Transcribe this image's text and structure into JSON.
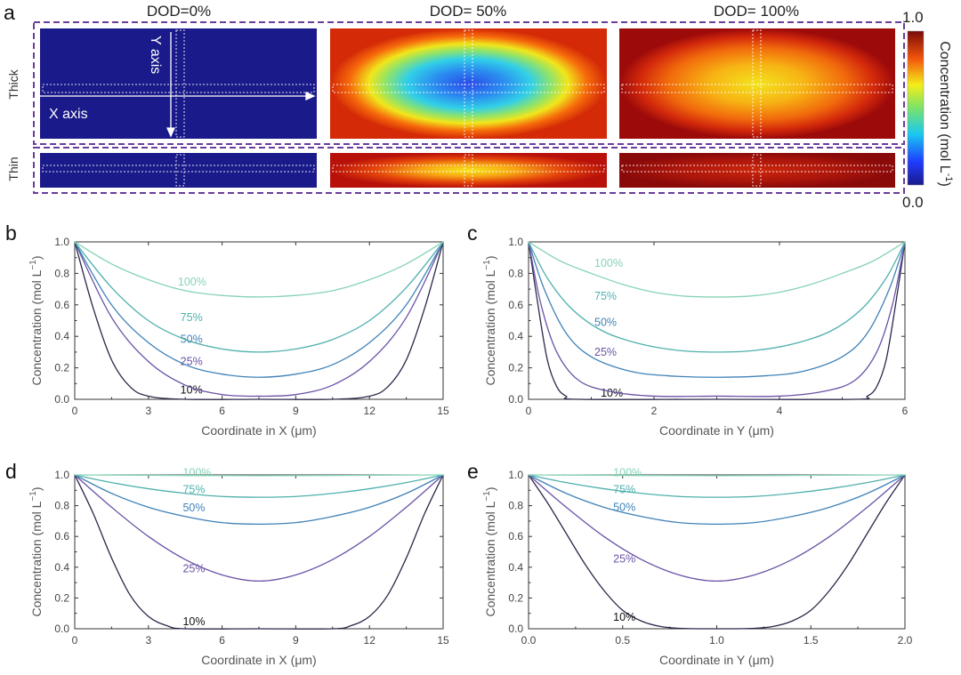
{
  "figure": {
    "panel_a_label": "a",
    "dod_headers": [
      "DOD=0%",
      "DOD= 50%",
      "DOD= 100%"
    ],
    "row_labels": [
      "Thick",
      "Thin"
    ],
    "axis_annotations": {
      "y": "Y axis",
      "x": "X axis"
    },
    "colorbar": {
      "max": "1.0",
      "min": "0.0",
      "title": "Concentration (mol L",
      "title_sup": "-1",
      "title_end": ")"
    }
  },
  "colors": {
    "10%": "#2b2748",
    "25%": "#6b52a6",
    "50%": "#3f82b8",
    "75%": "#4fb0ad",
    "100%": "#86d3b4",
    "dashed_frame": "#6a3c9b",
    "dark_blue": "#1a1a8a"
  },
  "chart_data": [
    {
      "panel": "b",
      "type": "line",
      "xlabel": "Coordinate in X (μm)",
      "ylabel": "Concentration (mol L",
      "ylabel_sup": "−1",
      "ylabel_end": ")",
      "xlim": [
        0,
        15
      ],
      "ylim": [
        0,
        1.0
      ],
      "xticks": [
        0,
        3,
        6,
        9,
        12,
        15
      ],
      "xtick_labels": [
        "0",
        "3",
        "6",
        "9",
        "12",
        "15"
      ],
      "yticks": [
        0,
        0.2,
        0.4,
        0.6,
        0.8,
        1.0
      ],
      "ytick_labels": [
        "0.0",
        "0.2",
        "0.4",
        "0.6",
        "0.8",
        "1.0"
      ],
      "series": [
        {
          "name": "10%",
          "x": [
            0,
            0.75,
            1.5,
            2.25,
            3,
            4.5,
            7.5,
            10.5,
            12,
            12.75,
            13.5,
            14.25,
            15
          ],
          "y": [
            1.0,
            0.58,
            0.25,
            0.08,
            0.02,
            0.0,
            0.0,
            0.0,
            0.02,
            0.08,
            0.25,
            0.58,
            1.0
          ],
          "label_pos": [
            4.3,
            0.06
          ]
        },
        {
          "name": "25%",
          "x": [
            0,
            1.5,
            3,
            4.5,
            6,
            7.5,
            9,
            10.5,
            12,
            13.5,
            15
          ],
          "y": [
            1.0,
            0.52,
            0.24,
            0.09,
            0.03,
            0.02,
            0.03,
            0.09,
            0.24,
            0.52,
            1.0
          ],
          "label_pos": [
            4.3,
            0.24
          ]
        },
        {
          "name": "50%",
          "x": [
            0,
            1.5,
            3,
            4.5,
            6,
            7.5,
            9,
            10.5,
            12,
            13.5,
            15
          ],
          "y": [
            1.0,
            0.6,
            0.36,
            0.22,
            0.16,
            0.14,
            0.16,
            0.22,
            0.36,
            0.6,
            1.0
          ],
          "label_pos": [
            4.3,
            0.38
          ]
        },
        {
          "name": "75%",
          "x": [
            0,
            1.5,
            3,
            4.5,
            6,
            7.5,
            9,
            10.5,
            12,
            13.5,
            15
          ],
          "y": [
            1.0,
            0.71,
            0.5,
            0.38,
            0.32,
            0.3,
            0.32,
            0.38,
            0.5,
            0.71,
            1.0
          ],
          "label_pos": [
            4.3,
            0.52
          ]
        },
        {
          "name": "100%",
          "x": [
            0,
            1.5,
            3,
            4.5,
            6,
            7.5,
            9,
            10.5,
            12,
            13.5,
            15
          ],
          "y": [
            1.0,
            0.86,
            0.76,
            0.69,
            0.66,
            0.65,
            0.66,
            0.69,
            0.76,
            0.86,
            1.0
          ],
          "label_pos": [
            4.2,
            0.745
          ]
        }
      ]
    },
    {
      "panel": "c",
      "type": "line",
      "xlabel": "Coordinate in Y (μm)",
      "ylabel": "Concentration (mol L",
      "ylabel_sup": "−1",
      "ylabel_end": ")",
      "xlim": [
        0,
        6
      ],
      "ylim": [
        0,
        1.0
      ],
      "xticks": [
        0,
        2,
        4,
        6
      ],
      "xtick_labels": [
        "0",
        "2",
        "4",
        "6"
      ],
      "yticks": [
        0,
        0.2,
        0.4,
        0.6,
        0.8,
        1.0
      ],
      "ytick_labels": [
        "0.0",
        "0.2",
        "0.4",
        "0.6",
        "0.8",
        "1.0"
      ],
      "series": [
        {
          "name": "10%",
          "x": [
            0,
            0.15,
            0.3,
            0.45,
            0.6,
            0.8,
            3,
            5.2,
            5.4,
            5.55,
            5.7,
            5.85,
            6
          ],
          "y": [
            1.0,
            0.6,
            0.25,
            0.08,
            0.02,
            0.0,
            0.0,
            0.0,
            0.02,
            0.08,
            0.25,
            0.6,
            1.0
          ],
          "label_pos": [
            1.15,
            0.04
          ]
        },
        {
          "name": "25%",
          "x": [
            0,
            0.2,
            0.45,
            0.8,
            1.3,
            2,
            3,
            4,
            4.7,
            5.2,
            5.55,
            5.8,
            6
          ],
          "y": [
            1.0,
            0.6,
            0.3,
            0.12,
            0.05,
            0.02,
            0.02,
            0.02,
            0.05,
            0.12,
            0.3,
            0.6,
            1.0
          ],
          "label_pos": [
            1.05,
            0.3
          ]
        },
        {
          "name": "50%",
          "x": [
            0,
            0.25,
            0.6,
            1.0,
            1.6,
            2.2,
            3,
            3.8,
            4.4,
            5.0,
            5.4,
            5.75,
            6
          ],
          "y": [
            1.0,
            0.7,
            0.42,
            0.27,
            0.18,
            0.15,
            0.14,
            0.15,
            0.18,
            0.27,
            0.42,
            0.7,
            1.0
          ],
          "label_pos": [
            1.05,
            0.49
          ]
        },
        {
          "name": "75%",
          "x": [
            0,
            0.3,
            0.7,
            1.2,
            1.8,
            2.4,
            3,
            3.6,
            4.2,
            4.8,
            5.3,
            5.7,
            6
          ],
          "y": [
            1.0,
            0.77,
            0.57,
            0.43,
            0.35,
            0.31,
            0.3,
            0.31,
            0.35,
            0.43,
            0.57,
            0.77,
            1.0
          ],
          "label_pos": [
            1.05,
            0.655
          ]
        },
        {
          "name": "100%",
          "x": [
            0,
            0.5,
            1,
            1.5,
            2,
            2.5,
            3,
            3.5,
            4,
            4.5,
            5,
            5.5,
            6
          ],
          "y": [
            1.0,
            0.88,
            0.8,
            0.73,
            0.68,
            0.655,
            0.65,
            0.655,
            0.68,
            0.73,
            0.8,
            0.88,
            1.0
          ],
          "label_pos": [
            1.05,
            0.865
          ]
        }
      ]
    },
    {
      "panel": "d",
      "type": "line",
      "xlabel": "Coordinate in X (μm)",
      "ylabel": "Concentration (mol L",
      "ylabel_sup": "−1",
      "ylabel_end": ")",
      "xlim": [
        0,
        15
      ],
      "ylim": [
        0,
        1.0
      ],
      "xticks": [
        0,
        3,
        6,
        9,
        12,
        15
      ],
      "xtick_labels": [
        "0",
        "3",
        "6",
        "9",
        "12",
        "15"
      ],
      "yticks": [
        0,
        0.2,
        0.4,
        0.6,
        0.8,
        1.0
      ],
      "ytick_labels": [
        "0.0",
        "0.2",
        "0.4",
        "0.6",
        "0.8",
        "1.0"
      ],
      "series": [
        {
          "name": "10%",
          "x": [
            0,
            0.75,
            1.5,
            2.25,
            3,
            3.75,
            4.5,
            7.5,
            10.5,
            11.25,
            12,
            12.75,
            13.5,
            14.25,
            15
          ],
          "y": [
            1.0,
            0.75,
            0.46,
            0.22,
            0.08,
            0.02,
            0.0,
            0.0,
            0.0,
            0.02,
            0.08,
            0.22,
            0.46,
            0.75,
            1.0
          ],
          "label_pos": [
            4.4,
            0.045
          ]
        },
        {
          "name": "25%",
          "x": [
            0,
            1.5,
            3,
            4.5,
            6,
            7.5,
            9,
            10.5,
            12,
            13.5,
            15
          ],
          "y": [
            1.0,
            0.79,
            0.6,
            0.45,
            0.35,
            0.31,
            0.35,
            0.45,
            0.6,
            0.79,
            1.0
          ],
          "label_pos": [
            4.4,
            0.39
          ]
        },
        {
          "name": "50%",
          "x": [
            0,
            1.5,
            3,
            4.5,
            6,
            7.5,
            9,
            10.5,
            12,
            13.5,
            15
          ],
          "y": [
            1.0,
            0.88,
            0.79,
            0.73,
            0.69,
            0.68,
            0.69,
            0.73,
            0.79,
            0.88,
            1.0
          ],
          "label_pos": [
            4.4,
            0.785
          ]
        },
        {
          "name": "75%",
          "x": [
            0,
            1.5,
            3,
            4.5,
            6,
            7.5,
            9,
            10.5,
            12,
            13.5,
            15
          ],
          "y": [
            1.0,
            0.95,
            0.91,
            0.88,
            0.86,
            0.855,
            0.86,
            0.88,
            0.91,
            0.95,
            1.0
          ],
          "label_pos": [
            4.4,
            0.905
          ]
        },
        {
          "name": "100%",
          "x": [
            0,
            7.5,
            15
          ],
          "y": [
            1.0,
            0.995,
            1.0
          ],
          "label_pos": [
            4.4,
            1.015
          ]
        }
      ]
    },
    {
      "panel": "e",
      "type": "line",
      "xlabel": "Coordinate in Y (μm)",
      "ylabel": "Concentration (mol L",
      "ylabel_sup": "−1",
      "ylabel_end": ")",
      "xlim": [
        0,
        2.0
      ],
      "ylim": [
        0,
        1.0
      ],
      "xticks": [
        0,
        0.5,
        1.0,
        1.5,
        2.0
      ],
      "xtick_labels": [
        "0.0",
        "0.5",
        "1.0",
        "1.5",
        "2.0"
      ],
      "yticks": [
        0,
        0.2,
        0.4,
        0.6,
        0.8,
        1.0
      ],
      "ytick_labels": [
        "0.0",
        "0.2",
        "0.4",
        "0.6",
        "0.8",
        "1.0"
      ],
      "series": [
        {
          "name": "10%",
          "x": [
            0,
            0.1,
            0.2,
            0.3,
            0.4,
            0.5,
            0.6,
            0.7,
            0.8,
            1.0,
            1.2,
            1.3,
            1.4,
            1.5,
            1.6,
            1.7,
            1.8,
            1.9,
            2.0
          ],
          "y": [
            1.0,
            0.82,
            0.62,
            0.42,
            0.25,
            0.12,
            0.05,
            0.015,
            0.003,
            0.0,
            0.003,
            0.015,
            0.05,
            0.12,
            0.25,
            0.42,
            0.62,
            0.82,
            1.0
          ],
          "label_pos": [
            0.45,
            0.075
          ]
        },
        {
          "name": "25%",
          "x": [
            0,
            0.2,
            0.4,
            0.6,
            0.8,
            1.0,
            1.2,
            1.4,
            1.6,
            1.8,
            2.0
          ],
          "y": [
            1.0,
            0.79,
            0.6,
            0.45,
            0.35,
            0.31,
            0.35,
            0.45,
            0.6,
            0.79,
            1.0
          ],
          "label_pos": [
            0.45,
            0.455
          ]
        },
        {
          "name": "50%",
          "x": [
            0,
            0.2,
            0.4,
            0.6,
            0.8,
            1.0,
            1.2,
            1.4,
            1.6,
            1.8,
            2.0
          ],
          "y": [
            1.0,
            0.88,
            0.79,
            0.73,
            0.69,
            0.68,
            0.69,
            0.73,
            0.79,
            0.88,
            1.0
          ],
          "label_pos": [
            0.45,
            0.79
          ]
        },
        {
          "name": "75%",
          "x": [
            0,
            0.2,
            0.4,
            0.6,
            0.8,
            1.0,
            1.2,
            1.4,
            1.6,
            1.8,
            2.0
          ],
          "y": [
            1.0,
            0.95,
            0.91,
            0.88,
            0.86,
            0.855,
            0.86,
            0.88,
            0.91,
            0.95,
            1.0
          ],
          "label_pos": [
            0.45,
            0.905
          ]
        },
        {
          "name": "100%",
          "x": [
            0,
            1.0,
            2.0
          ],
          "y": [
            1.0,
            0.995,
            1.0
          ],
          "label_pos": [
            0.45,
            1.015
          ]
        }
      ]
    }
  ]
}
